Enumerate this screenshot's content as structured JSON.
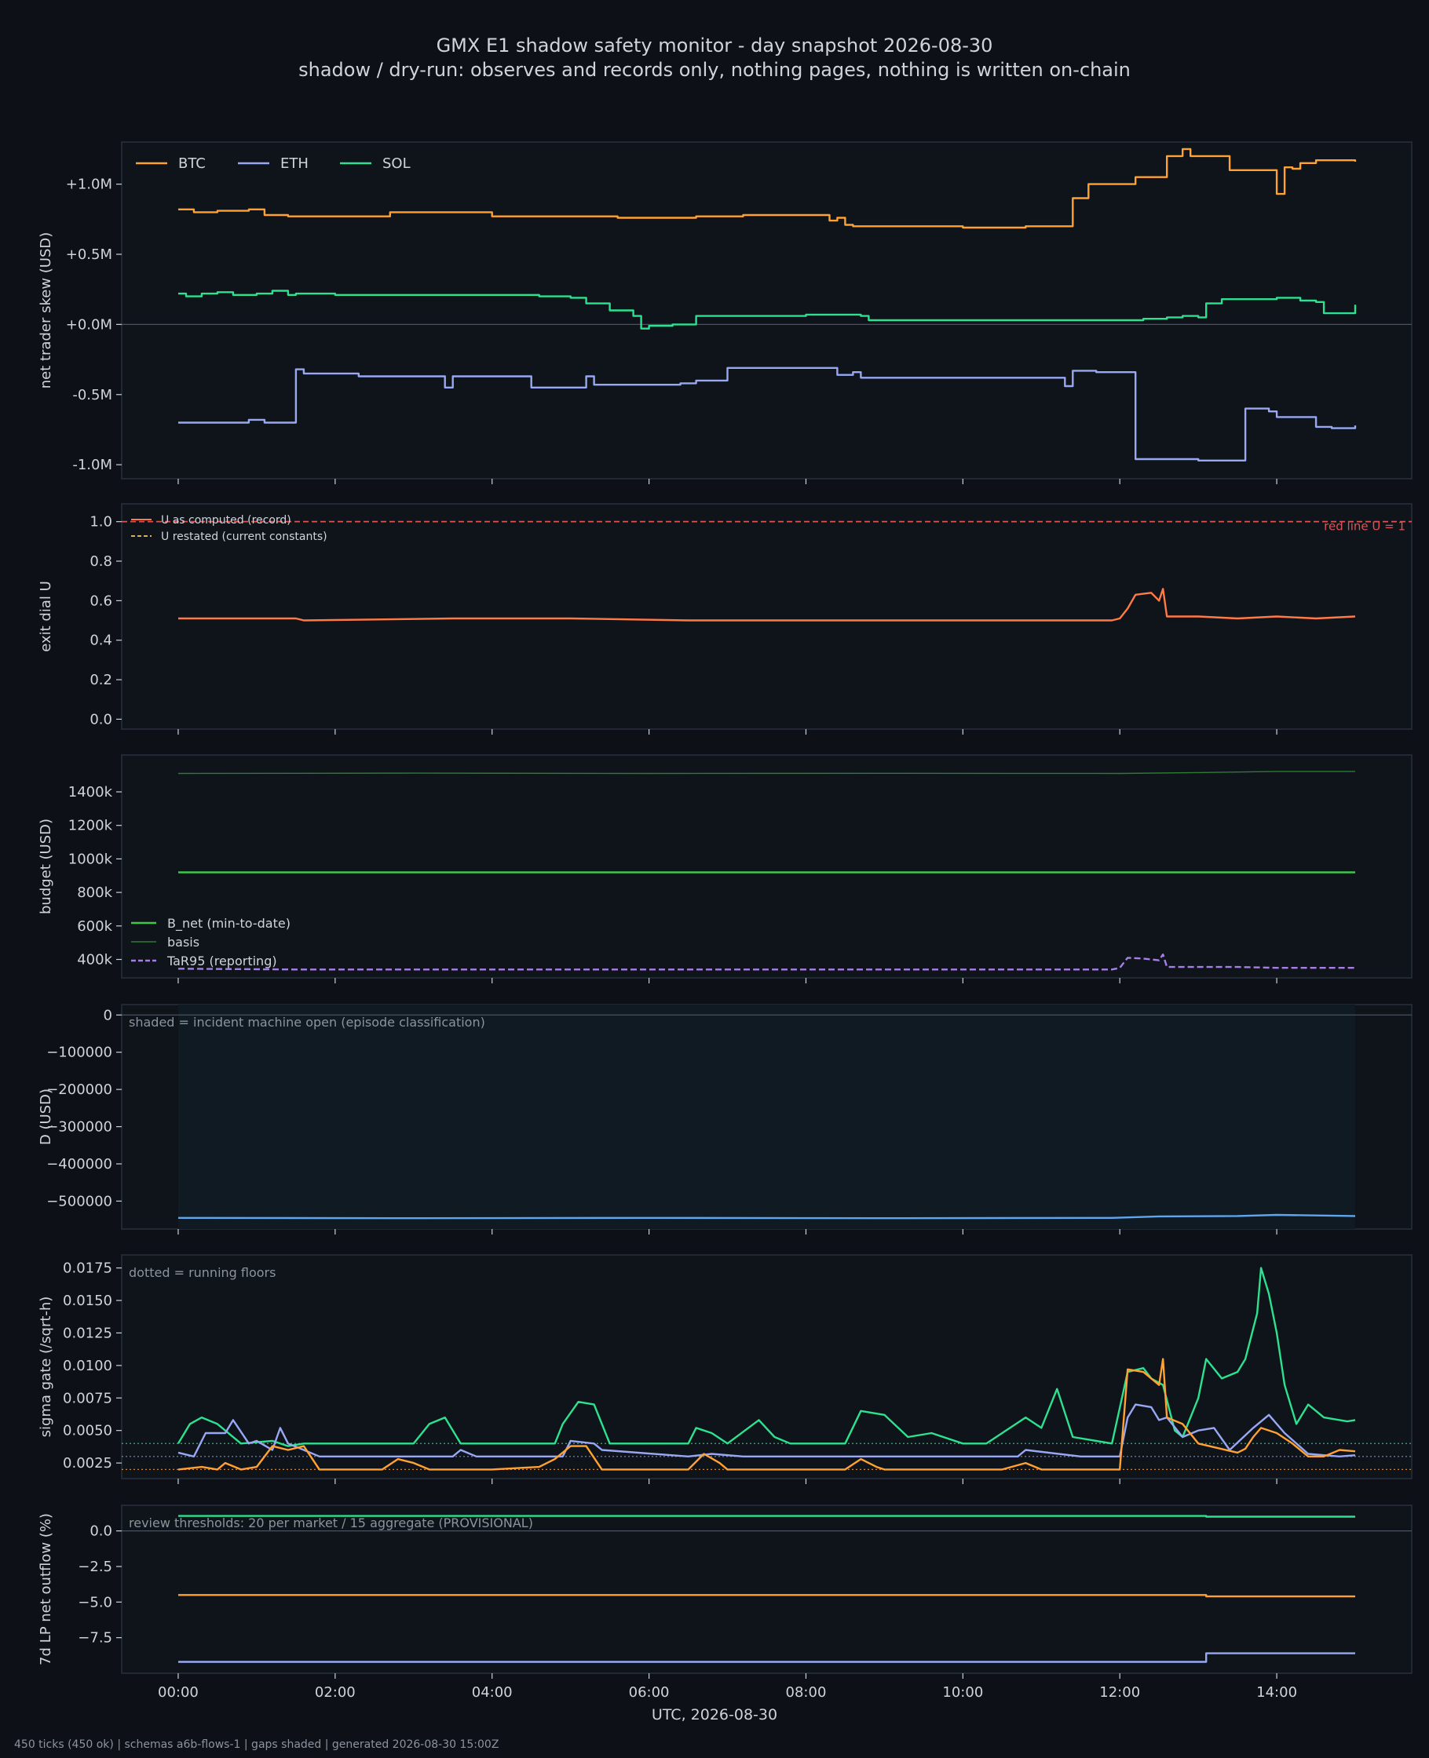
{
  "header": {
    "title": "GMX E1 shadow safety monitor - day snapshot 2026-08-30",
    "subtitle": "shadow / dry-run: observes and records only, nothing pages, nothing is written on-chain"
  },
  "footer": {
    "text": "450 ticks (450 ok) | schemas a6b-flows-1 | gaps shaded | generated 2026-08-30 15:00Z"
  },
  "x_axis": {
    "label": "UTC, 2026-08-30",
    "unit": "hours",
    "range": [
      -0.72,
      15.72
    ],
    "ticks": [
      0,
      2,
      4,
      6,
      8,
      10,
      12,
      14
    ],
    "tick_labels": [
      "00:00",
      "02:00",
      "04:00",
      "06:00",
      "08:00",
      "10:00",
      "12:00",
      "14:00"
    ]
  },
  "colors": {
    "background": "#0d1117",
    "panel": "#0f131a",
    "text": "#d0d4da",
    "muted": "#8b949e",
    "btc": "#ffa133",
    "eth": "#98a8f2",
    "sol": "#2de28f",
    "u_record": "#ff7a45",
    "u_restated": "#e0b050",
    "redline": "#e05252",
    "bnet": "#3fc74a",
    "basis": "#2f7a34",
    "tar95": "#a77de8",
    "d_line": "#5fa6f0",
    "incident_shade": "#0f1a22"
  },
  "chart_data": [
    {
      "id": "skew",
      "type": "line",
      "ylabel": "net trader skew (USD)",
      "ylim": [
        -1.1,
        1.3
      ],
      "yticks": [
        1.0,
        0.5,
        0.0,
        -0.5,
        -1.0
      ],
      "ytick_labels": [
        "+1.0M",
        "+0.5M",
        "+0.0M",
        "-0.5M",
        "-1.0M"
      ],
      "legend_position": "top-left",
      "series": [
        {
          "name": "BTC",
          "color_key": "btc",
          "step": true,
          "x": [
            0,
            0.2,
            0.5,
            0.9,
            1.1,
            1.4,
            2.1,
            2.7,
            3.9,
            4.0,
            5.5,
            5.6,
            6.3,
            6.6,
            7.2,
            8.2,
            8.3,
            8.4,
            8.5,
            8.6,
            9.2,
            9.9,
            10.0,
            10.5,
            10.8,
            11.3,
            11.4,
            11.6,
            12.1,
            12.2,
            12.5,
            12.6,
            12.7,
            12.8,
            12.9,
            13.0,
            13.4,
            13.5,
            13.9,
            14.0,
            14.1,
            14.2,
            14.3,
            14.5,
            14.9,
            15.0
          ],
          "values": [
            0.82,
            0.8,
            0.81,
            0.82,
            0.78,
            0.77,
            0.77,
            0.8,
            0.8,
            0.77,
            0.77,
            0.76,
            0.76,
            0.77,
            0.78,
            0.78,
            0.74,
            0.76,
            0.71,
            0.7,
            0.7,
            0.7,
            0.69,
            0.69,
            0.7,
            0.7,
            0.9,
            1.0,
            1.0,
            1.05,
            1.05,
            1.2,
            1.2,
            1.25,
            1.2,
            1.2,
            1.1,
            1.1,
            1.1,
            0.93,
            1.12,
            1.11,
            1.15,
            1.17,
            1.17,
            1.16
          ]
        },
        {
          "name": "ETH",
          "color_key": "eth",
          "step": true,
          "x": [
            0,
            0.7,
            0.9,
            1.1,
            1.5,
            1.6,
            1.9,
            2.3,
            3.2,
            3.4,
            3.5,
            3.6,
            3.7,
            4.3,
            4.5,
            5.1,
            5.2,
            5.3,
            5.6,
            6.2,
            6.4,
            6.6,
            6.7,
            7.0,
            7.4,
            8.1,
            8.4,
            8.6,
            8.7,
            8.8,
            9.2,
            10.0,
            10.6,
            11.1,
            11.3,
            11.4,
            11.5,
            11.7,
            12.1,
            12.2,
            12.5,
            12.7,
            13.0,
            13.3,
            13.4,
            13.6,
            13.7,
            13.8,
            13.9,
            14.0,
            14.3,
            14.5,
            14.7,
            15.0
          ],
          "values": [
            -0.7,
            -0.7,
            -0.68,
            -0.7,
            -0.32,
            -0.35,
            -0.35,
            -0.37,
            -0.37,
            -0.45,
            -0.37,
            -0.37,
            -0.37,
            -0.37,
            -0.45,
            -0.45,
            -0.37,
            -0.43,
            -0.43,
            -0.43,
            -0.42,
            -0.4,
            -0.4,
            -0.31,
            -0.31,
            -0.31,
            -0.36,
            -0.34,
            -0.38,
            -0.38,
            -0.38,
            -0.38,
            -0.38,
            -0.38,
            -0.44,
            -0.33,
            -0.33,
            -0.34,
            -0.34,
            -0.96,
            -0.96,
            -0.96,
            -0.97,
            -0.97,
            -0.97,
            -0.6,
            -0.6,
            -0.6,
            -0.62,
            -0.66,
            -0.66,
            -0.73,
            -0.74,
            -0.72
          ]
        },
        {
          "name": "SOL",
          "color_key": "sol",
          "step": true,
          "x": [
            0,
            0.1,
            0.3,
            0.5,
            0.7,
            1.0,
            1.2,
            1.4,
            1.5,
            2.0,
            3.0,
            4.3,
            4.6,
            5.0,
            5.1,
            5.2,
            5.5,
            5.8,
            5.9,
            6.0,
            6.3,
            6.6,
            7.0,
            7.9,
            8.0,
            8.7,
            8.8,
            9.5,
            10.0,
            11.0,
            12.0,
            12.3,
            12.6,
            12.8,
            13.0,
            13.1,
            13.3,
            13.8,
            14.0,
            14.3,
            14.5,
            14.6,
            15.0
          ],
          "values": [
            0.22,
            0.2,
            0.22,
            0.23,
            0.21,
            0.22,
            0.24,
            0.21,
            0.22,
            0.21,
            0.21,
            0.21,
            0.2,
            0.19,
            0.19,
            0.15,
            0.1,
            0.06,
            -0.03,
            -0.01,
            0.0,
            0.06,
            0.06,
            0.06,
            0.07,
            0.06,
            0.03,
            0.03,
            0.03,
            0.03,
            0.03,
            0.04,
            0.05,
            0.06,
            0.05,
            0.15,
            0.18,
            0.18,
            0.19,
            0.17,
            0.16,
            0.08,
            0.14
          ]
        }
      ],
      "zero_line": true
    },
    {
      "id": "exit_dial",
      "type": "line",
      "ylabel": "exit dial U",
      "ylim": [
        -0.05,
        1.09
      ],
      "yticks": [
        0.0,
        0.2,
        0.4,
        0.6,
        0.8,
        1.0
      ],
      "ytick_labels": [
        "0.0",
        "0.2",
        "0.4",
        "0.6",
        "0.8",
        "1.0"
      ],
      "legend_position": "top-left",
      "legend": [
        {
          "name": "U as computed (record)",
          "color_key": "u_record",
          "dashed": false
        },
        {
          "name": "U restated (current constants)",
          "color_key": "u_restated",
          "dashed": true
        }
      ],
      "redline": {
        "y": 1.0,
        "label": "red line U = 1"
      },
      "series": [
        {
          "name": "U as computed (record)",
          "color_key": "u_record",
          "x": [
            0,
            1.5,
            1.6,
            3.5,
            5.0,
            6.5,
            8.0,
            10.0,
            11.9,
            12.0,
            12.1,
            12.2,
            12.4,
            12.5,
            12.55,
            12.6,
            12.8,
            13.0,
            13.5,
            14.0,
            14.5,
            15.0
          ],
          "values": [
            0.51,
            0.51,
            0.5,
            0.51,
            0.51,
            0.5,
            0.5,
            0.5,
            0.5,
            0.51,
            0.56,
            0.63,
            0.64,
            0.6,
            0.66,
            0.52,
            0.52,
            0.52,
            0.51,
            0.52,
            0.51,
            0.52
          ]
        }
      ]
    },
    {
      "id": "budget",
      "type": "line",
      "ylabel": "budget (USD)",
      "ylim": [
        290,
        1620
      ],
      "yticks": [
        400,
        600,
        800,
        1000,
        1200,
        1400
      ],
      "ytick_labels": [
        "400k",
        "600k",
        "800k",
        "1000k",
        "1200k",
        "1400k"
      ],
      "legend_position": "bottom-left",
      "series": [
        {
          "name": "B_net (min-to-date)",
          "color_key": "bnet",
          "x": [
            0,
            15
          ],
          "values": [
            920,
            920
          ]
        },
        {
          "name": "basis",
          "color_key": "basis",
          "x": [
            0,
            3,
            6,
            9,
            12,
            13,
            14,
            15
          ],
          "values": [
            1510,
            1512,
            1510,
            1511,
            1510,
            1515,
            1522,
            1522
          ]
        },
        {
          "name": "TaR95 (reporting)",
          "color_key": "tar95",
          "dashed": true,
          "x": [
            0,
            1.5,
            3,
            6,
            9,
            11.9,
            12.0,
            12.1,
            12.3,
            12.5,
            12.55,
            12.6,
            13.0,
            13.5,
            14.0,
            14.5,
            15.0
          ],
          "values": [
            345,
            340,
            340,
            340,
            340,
            340,
            350,
            410,
            405,
            395,
            430,
            355,
            355,
            355,
            350,
            350,
            350
          ]
        }
      ]
    },
    {
      "id": "drawdown",
      "type": "area",
      "ylabel": "D (USD)",
      "ylim": [
        -575000,
        28000
      ],
      "yticks": [
        0,
        -100000,
        -200000,
        -300000,
        -400000,
        -500000
      ],
      "ytick_labels": [
        "0",
        "−100000",
        "−200000",
        "−300000",
        "−400000",
        "−500000"
      ],
      "annotation": "shaded = incident machine open (episode classification)",
      "incident_shade": [
        0,
        15
      ],
      "series": [
        {
          "name": "D",
          "color_key": "d_line",
          "x": [
            0,
            3,
            6,
            9,
            11.9,
            12.5,
            13.5,
            14.0,
            15.0
          ],
          "values": [
            -545000,
            -546000,
            -545000,
            -546000,
            -545000,
            -541000,
            -540000,
            -537000,
            -540000
          ]
        }
      ],
      "zero_line": true
    },
    {
      "id": "sigma",
      "type": "line",
      "ylabel": "sigma gate (/sqrt-h)",
      "ylim": [
        0.0013,
        0.0185
      ],
      "yticks": [
        0.0025,
        0.005,
        0.0075,
        0.01,
        0.0125,
        0.015,
        0.0175
      ],
      "ytick_labels": [
        "0.0025",
        "0.0050",
        "0.0075",
        "0.0100",
        "0.0125",
        "0.0150",
        "0.0175"
      ],
      "annotation": "dotted = running floors",
      "floors": [
        {
          "color_key": "btc",
          "y": 0.002
        },
        {
          "color_key": "eth",
          "y": 0.003
        },
        {
          "color_key": "sol",
          "y": 0.004
        }
      ],
      "series": [
        {
          "name": "SOL",
          "color_key": "sol",
          "x": [
            0,
            0.15,
            0.3,
            0.5,
            0.8,
            1.2,
            1.4,
            1.6,
            3.0,
            3.2,
            3.4,
            3.6,
            4.8,
            4.9,
            5.1,
            5.3,
            5.5,
            6.0,
            6.5,
            6.6,
            6.8,
            7.0,
            7.4,
            7.6,
            7.8,
            8.5,
            8.7,
            9.0,
            9.3,
            9.6,
            10.0,
            10.3,
            10.8,
            11.0,
            11.2,
            11.4,
            11.9,
            12.1,
            12.3,
            12.4,
            12.55,
            12.7,
            12.8,
            13.0,
            13.1,
            13.3,
            13.5,
            13.6,
            13.75,
            13.8,
            13.9,
            14.0,
            14.1,
            14.25,
            14.4,
            14.6,
            14.9,
            15.0
          ],
          "values": [
            0.004,
            0.0055,
            0.006,
            0.0055,
            0.004,
            0.0042,
            0.0038,
            0.004,
            0.004,
            0.0055,
            0.006,
            0.004,
            0.004,
            0.0055,
            0.0072,
            0.007,
            0.004,
            0.004,
            0.004,
            0.0052,
            0.0048,
            0.004,
            0.0058,
            0.0045,
            0.004,
            0.004,
            0.0065,
            0.0062,
            0.0045,
            0.0048,
            0.004,
            0.004,
            0.006,
            0.0052,
            0.0082,
            0.0045,
            0.004,
            0.0095,
            0.0098,
            0.009,
            0.0085,
            0.005,
            0.0045,
            0.0075,
            0.0105,
            0.009,
            0.0095,
            0.0105,
            0.014,
            0.0175,
            0.0155,
            0.0125,
            0.0085,
            0.0055,
            0.007,
            0.006,
            0.0057,
            0.0058
          ]
        },
        {
          "name": "ETH",
          "color_key": "eth",
          "x": [
            0,
            0.2,
            0.35,
            0.6,
            0.7,
            0.9,
            1.0,
            1.2,
            1.3,
            1.4,
            1.6,
            1.8,
            2.2,
            3.5,
            3.6,
            3.8,
            4.2,
            4.9,
            5.0,
            5.3,
            5.4,
            6.5,
            6.8,
            7.2,
            8.0,
            9.0,
            10.0,
            10.7,
            10.8,
            11.5,
            12.0,
            12.1,
            12.2,
            12.4,
            12.5,
            12.6,
            12.8,
            13.0,
            13.2,
            13.4,
            13.7,
            13.9,
            14.1,
            14.4,
            14.8,
            15.0
          ],
          "values": [
            0.0033,
            0.003,
            0.0048,
            0.0048,
            0.0058,
            0.004,
            0.0042,
            0.0035,
            0.0052,
            0.004,
            0.0035,
            0.003,
            0.003,
            0.003,
            0.0035,
            0.003,
            0.003,
            0.003,
            0.0042,
            0.004,
            0.0035,
            0.003,
            0.0032,
            0.003,
            0.003,
            0.003,
            0.003,
            0.003,
            0.0035,
            0.003,
            0.003,
            0.006,
            0.007,
            0.0068,
            0.0058,
            0.006,
            0.0045,
            0.005,
            0.0052,
            0.0035,
            0.0052,
            0.0062,
            0.0048,
            0.0032,
            0.003,
            0.0031
          ]
        },
        {
          "name": "BTC",
          "color_key": "btc",
          "x": [
            0,
            0.3,
            0.5,
            0.6,
            0.8,
            1.0,
            1.2,
            1.4,
            1.6,
            1.8,
            2.0,
            2.6,
            2.8,
            3.0,
            3.2,
            4.0,
            4.6,
            4.8,
            5.0,
            5.2,
            5.4,
            5.6,
            6.0,
            6.5,
            6.7,
            6.9,
            7.0,
            8.5,
            8.7,
            8.9,
            9.0,
            10.5,
            10.8,
            11.0,
            12.0,
            12.1,
            12.3,
            12.5,
            12.55,
            12.6,
            12.8,
            13.0,
            13.5,
            13.6,
            13.7,
            13.8,
            14.0,
            14.2,
            14.4,
            14.6,
            14.8,
            15.0
          ],
          "values": [
            0.002,
            0.0022,
            0.002,
            0.0025,
            0.002,
            0.0022,
            0.0038,
            0.0035,
            0.0038,
            0.002,
            0.002,
            0.002,
            0.0028,
            0.0025,
            0.002,
            0.002,
            0.0022,
            0.0028,
            0.0038,
            0.0038,
            0.002,
            0.002,
            0.002,
            0.002,
            0.0032,
            0.0025,
            0.002,
            0.002,
            0.0028,
            0.0022,
            0.002,
            0.002,
            0.0025,
            0.002,
            0.002,
            0.0097,
            0.0095,
            0.0085,
            0.0105,
            0.006,
            0.0055,
            0.004,
            0.0033,
            0.0036,
            0.0045,
            0.0052,
            0.0048,
            0.004,
            0.003,
            0.003,
            0.0035,
            0.0034
          ]
        }
      ]
    },
    {
      "id": "lp_outflow",
      "type": "line",
      "ylabel": "7d LP net outflow (%)",
      "ylim": [
        -10.0,
        1.8
      ],
      "yticks": [
        0.0,
        -2.5,
        -5.0,
        -7.5
      ],
      "ytick_labels": [
        "0.0",
        "−2.5",
        "−5.0",
        "−7.5"
      ],
      "annotation": "review thresholds: 20 per market / 15 aggregate (PROVISIONAL)",
      "series": [
        {
          "name": "SOL",
          "color_key": "sol",
          "step": true,
          "x": [
            0,
            13.1,
            15
          ],
          "values": [
            1.05,
            1.0,
            1.0
          ]
        },
        {
          "name": "BTC",
          "color_key": "btc",
          "step": true,
          "x": [
            0,
            13.1,
            15
          ],
          "values": [
            -4.5,
            -4.6,
            -4.6
          ]
        },
        {
          "name": "ETH",
          "color_key": "eth",
          "step": true,
          "x": [
            0,
            13.1,
            15
          ],
          "values": [
            -9.2,
            -8.6,
            -8.6
          ]
        }
      ],
      "zero_line": true
    }
  ]
}
